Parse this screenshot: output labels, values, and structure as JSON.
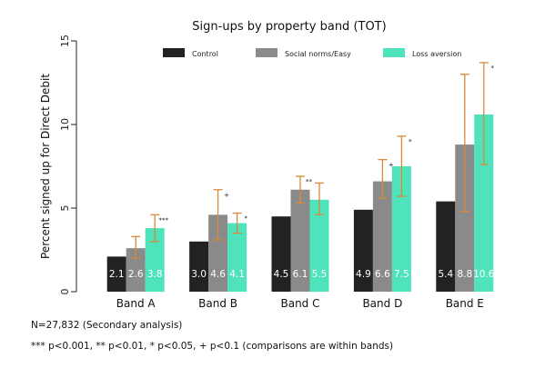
{
  "chart_data": {
    "type": "bar",
    "title": "Sign-ups by property band (TOT)",
    "xlabel": "",
    "ylabel": "Percent signed up for Direct Debit",
    "ylim": [
      0,
      15
    ],
    "yticks": [
      "0",
      "5",
      "10",
      "15"
    ],
    "categories": [
      "Band A",
      "Band B",
      "Band C",
      "Band D",
      "Band E"
    ],
    "legend_position": "top",
    "series": [
      {
        "name": "Control",
        "color": "#222222",
        "values": [
          2.1,
          3.0,
          4.5,
          4.9,
          5.4
        ],
        "labels": [
          "2.1",
          "3.0",
          "4.5",
          "4.9",
          "5.4"
        ],
        "error_low": [
          null,
          null,
          null,
          null,
          null
        ],
        "error_high": [
          null,
          null,
          null,
          null,
          null
        ],
        "significance": [
          "",
          "",
          "",
          "",
          ""
        ]
      },
      {
        "name": "Social norms/Easy",
        "color": "#8a8a8a",
        "values": [
          2.6,
          4.6,
          6.1,
          6.6,
          8.8
        ],
        "labels": [
          "2.6",
          "4.6",
          "6.1",
          "6.6",
          "8.8"
        ],
        "error_low": [
          2.0,
          3.1,
          5.3,
          5.6,
          4.8
        ],
        "error_high": [
          3.3,
          6.1,
          6.9,
          7.9,
          13.0
        ],
        "significance": [
          "",
          "+",
          "**",
          "+",
          ""
        ]
      },
      {
        "name": "Loss aversion",
        "color": "#4fe3bb",
        "values": [
          3.8,
          4.1,
          5.5,
          7.5,
          10.6
        ],
        "labels": [
          "3.8",
          "4.1",
          "5.5",
          "7.5",
          "10.6"
        ],
        "error_low": [
          3.0,
          3.5,
          4.6,
          5.7,
          7.6
        ],
        "error_high": [
          4.6,
          4.7,
          6.5,
          9.3,
          13.7
        ],
        "significance": [
          "***",
          "*",
          "",
          "*",
          "*"
        ]
      }
    ],
    "error_bar_color": "#d9893a",
    "grid": false
  },
  "notes": {
    "sample": "N=27,832 (Secondary analysis)",
    "significance_key": "*** p<0.001, ** p<0.01, * p<0.05, + p<0.1 (comparisons are within bands)"
  }
}
